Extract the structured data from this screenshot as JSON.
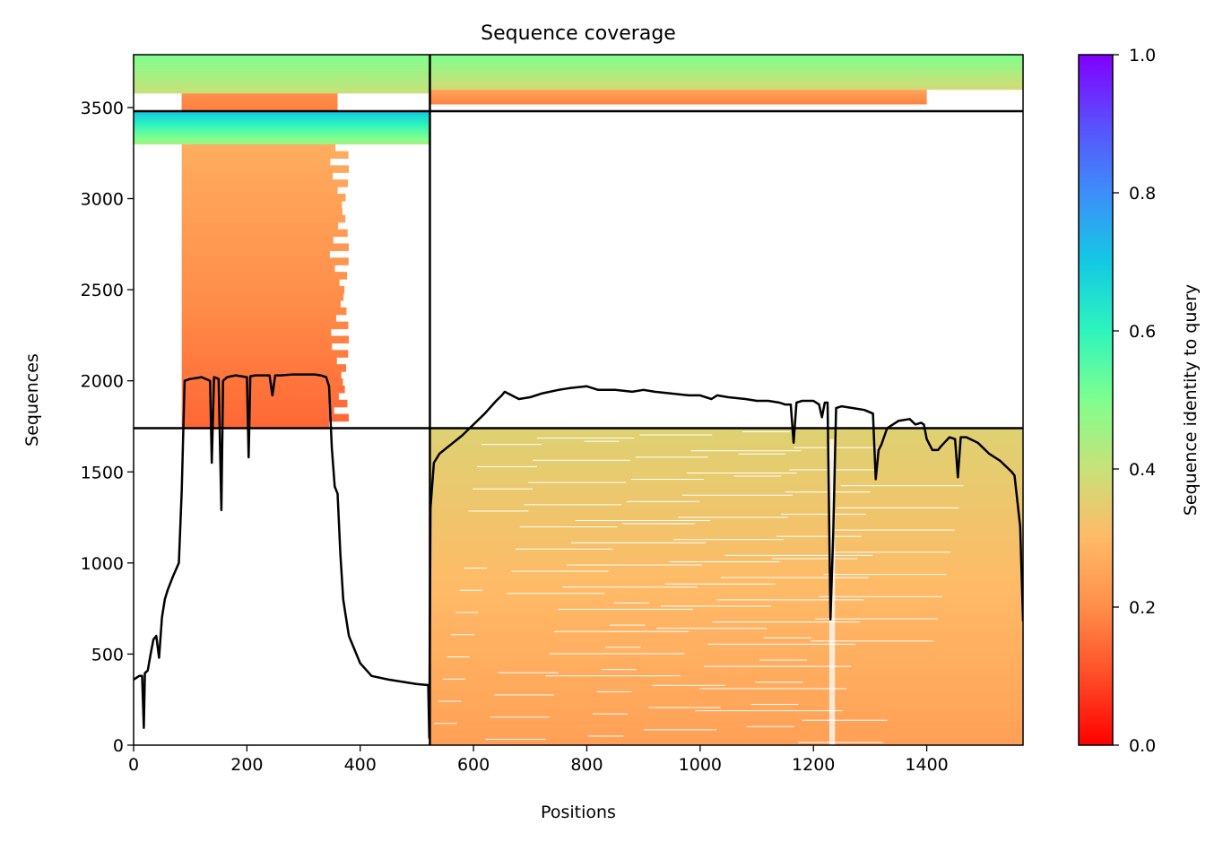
{
  "chart_data": {
    "type": "heatmap",
    "title": "Sequence coverage",
    "xlabel": "Positions",
    "ylabel": "Sequences",
    "xlim": [
      0,
      1570
    ],
    "ylim": [
      0,
      3790
    ],
    "xticks": [
      0,
      200,
      400,
      600,
      800,
      1000,
      1200,
      1400
    ],
    "yticks": [
      0,
      500,
      1000,
      1500,
      2000,
      2500,
      3000,
      3500
    ],
    "colorbar": {
      "label": "Sequence identity to query",
      "range": [
        0,
        1
      ],
      "ticks": [
        0.0,
        0.2,
        0.4,
        0.6,
        0.8,
        1.0
      ],
      "colormap": "rainbow_r"
    },
    "chain_boundaries": {
      "positions": [
        523
      ],
      "sequence_counts": [
        1740,
        3480
      ]
    },
    "coverage_blocks": [
      {
        "rows": [
          0,
          1740
        ],
        "x_start": 523,
        "x_end": 1570,
        "identity_bottom": 0.24,
        "identity_top": 0.36,
        "gap_at": 1232
      },
      {
        "rows": [
          1740,
          3300
        ],
        "x_start": 85,
        "x_end": 345,
        "identity_bottom": 0.14,
        "identity_top": 0.27,
        "ragged_to": 380
      },
      {
        "rows": [
          3300,
          3480
        ],
        "x_start": 0,
        "x_end": 523,
        "identity_bottom": 0.45,
        "identity_top": 0.7
      },
      {
        "rows": [
          3480,
          3580
        ],
        "x_start": 85,
        "x_end": 360,
        "identity_bottom": 0.18,
        "identity_top": 0.2
      },
      {
        "rows": [
          3580,
          3790
        ],
        "x_start": 0,
        "x_end": 523,
        "identity_bottom": 0.4,
        "identity_top": 0.5
      },
      {
        "rows": [
          3520,
          3600
        ],
        "x_start": 523,
        "x_end": 1400,
        "identity_bottom": 0.18,
        "identity_top": 0.25
      },
      {
        "rows": [
          3600,
          3790
        ],
        "x_start": 523,
        "x_end": 1570,
        "identity_bottom": 0.38,
        "identity_top": 0.5
      }
    ],
    "series": [
      {
        "x": [
          0,
          10,
          15,
          18,
          20,
          25,
          30,
          35,
          40,
          45,
          50,
          55,
          60,
          70,
          80,
          85,
          90,
          100,
          120,
          135,
          138,
          142,
          150,
          155,
          158,
          165,
          180,
          200,
          203,
          206,
          215,
          240,
          245,
          250,
          260,
          280,
          300,
          320,
          330,
          340,
          345,
          350,
          355,
          360,
          365,
          370,
          375,
          380,
          400,
          420,
          450,
          480,
          500,
          520,
          522,
          524,
          530,
          540,
          560,
          580,
          600,
          620,
          640,
          650,
          655,
          680,
          700,
          720,
          750,
          770,
          800,
          820,
          850,
          880,
          900,
          920,
          950,
          980,
          1000,
          1020,
          1030,
          1050,
          1080,
          1100,
          1120,
          1140,
          1150,
          1160,
          1165,
          1170,
          1180,
          1200,
          1210,
          1215,
          1220,
          1225,
          1230,
          1235,
          1240,
          1250,
          1270,
          1290,
          1305,
          1310,
          1315,
          1320,
          1330,
          1350,
          1370,
          1380,
          1390,
          1395,
          1400,
          1410,
          1420,
          1425,
          1440,
          1450,
          1455,
          1460,
          1470,
          1490,
          1510,
          1530,
          1550,
          1555,
          1565,
          1570
        ],
        "y": [
          360,
          380,
          380,
          95,
          395,
          410,
          500,
          580,
          600,
          480,
          700,
          800,
          850,
          930,
          1000,
          1400,
          2000,
          2010,
          2020,
          2000,
          1550,
          2020,
          2010,
          1290,
          2000,
          2020,
          2030,
          2020,
          1580,
          2025,
          2030,
          2030,
          1920,
          2030,
          2030,
          2035,
          2035,
          2035,
          2030,
          2020,
          1970,
          1630,
          1420,
          1380,
          1050,
          800,
          700,
          600,
          450,
          380,
          360,
          345,
          335,
          330,
          40,
          1300,
          1550,
          1600,
          1650,
          1700,
          1760,
          1820,
          1890,
          1920,
          1940,
          1900,
          1910,
          1930,
          1950,
          1960,
          1970,
          1950,
          1950,
          1940,
          1950,
          1940,
          1930,
          1920,
          1920,
          1900,
          1920,
          1910,
          1900,
          1890,
          1890,
          1880,
          1870,
          1870,
          1660,
          1880,
          1890,
          1890,
          1870,
          1800,
          1880,
          1880,
          690,
          1160,
          1850,
          1860,
          1850,
          1840,
          1820,
          1460,
          1620,
          1650,
          1740,
          1780,
          1790,
          1760,
          1770,
          1760,
          1680,
          1620,
          1620,
          1640,
          1690,
          1680,
          1470,
          1690,
          1690,
          1660,
          1600,
          1560,
          1500,
          1480,
          1200,
          680
        ]
      }
    ]
  }
}
